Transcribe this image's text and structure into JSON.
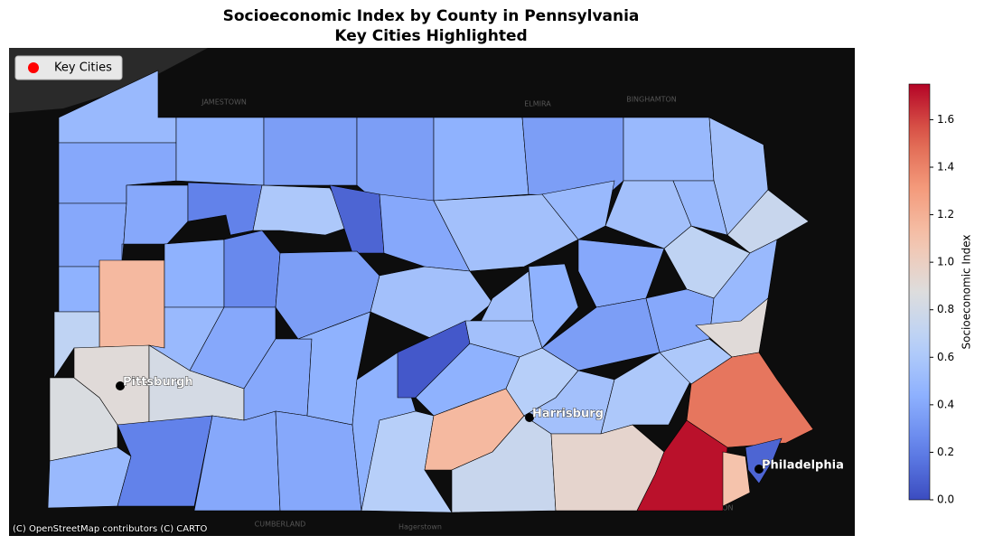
{
  "chart_data": {
    "type": "choropleth",
    "title": "Socioeconomic Index by County in Pennsylvania",
    "subtitle": "Key Cities Highlighted",
    "values": [
      0.5,
      0.4,
      0.45,
      0.35,
      0.35,
      0.45,
      0.35,
      0.5,
      0.55,
      0.4,
      0.4,
      0.22,
      0.6,
      0.1,
      0.4,
      0.55,
      0.5,
      0.55,
      0.5,
      0.75,
      0.45,
      1.15,
      0.45,
      0.25,
      0.35,
      0.55,
      0.55,
      0.45,
      0.4,
      0.7,
      0.7,
      0.9,
      0.5,
      0.4,
      0.85,
      0.82,
      0.5,
      0.22,
      0.4,
      0.4,
      0.4,
      0.45,
      0.45,
      0.05,
      0.45,
      0.55,
      0.65,
      1.15,
      0.65,
      0.35,
      0.55,
      0.6,
      0.4,
      0.5,
      0.9,
      0.6,
      0.75,
      0.95,
      1.72,
      1.45,
      1.1,
      0.1
    ],
    "colormap": "coolwarm",
    "colorbar": {
      "label": "Socioeconomic Index",
      "lim": [
        0,
        1.75
      ],
      "ticks": [
        {
          "value": 0,
          "label": "0.0"
        },
        0.2,
        0.4,
        0.6,
        0.8,
        {
          "value": 1,
          "label": "1.0"
        },
        1.2,
        1.4,
        1.6
      ]
    },
    "legend": {
      "label": "Key Cities",
      "color": "#ff0000",
      "corner": "upper left"
    },
    "cities": {
      "names": [
        "Pittsburgh",
        "Harrisburg",
        "Philadelphia"
      ],
      "color": "#000000"
    },
    "basemap_labels": [
      "JAMESTOWN",
      "ELMIRA",
      "BINGHAMTON",
      "CUMBERLAND",
      "Hagerstown",
      "WILMINGTON"
    ],
    "attribution": "(C) OpenStreetMap contributors (C) CARTO"
  }
}
